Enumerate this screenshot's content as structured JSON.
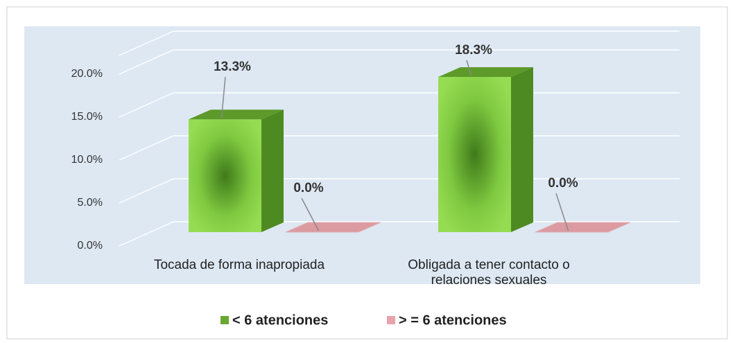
{
  "chart_data": {
    "type": "bar3d",
    "categories": [
      "Tocada de forma inapropiada",
      "Obligada a tener contacto o relaciones sexuales"
    ],
    "series": [
      {
        "name": "< 6 atenciones",
        "color": "#6aa834",
        "values": [
          13.3,
          18.3
        ],
        "value_labels": [
          "13.3%",
          "18.3%"
        ]
      },
      {
        "name": "> = 6 atenciones",
        "color": "#e8a3aa",
        "values": [
          0,
          0
        ],
        "value_labels": [
          "0.0%",
          "0.0%"
        ]
      }
    ],
    "ylim": [
      0,
      25
    ],
    "yticks": [
      {
        "value": 0,
        "label": "0.0%"
      },
      {
        "value": 5,
        "label": "5.0%"
      },
      {
        "value": 10,
        "label": "10.0%"
      },
      {
        "value": 15,
        "label": "15.0%"
      },
      {
        "value": 20,
        "label": "20.0%"
      }
    ],
    "grid": true,
    "legend": "bottom"
  }
}
